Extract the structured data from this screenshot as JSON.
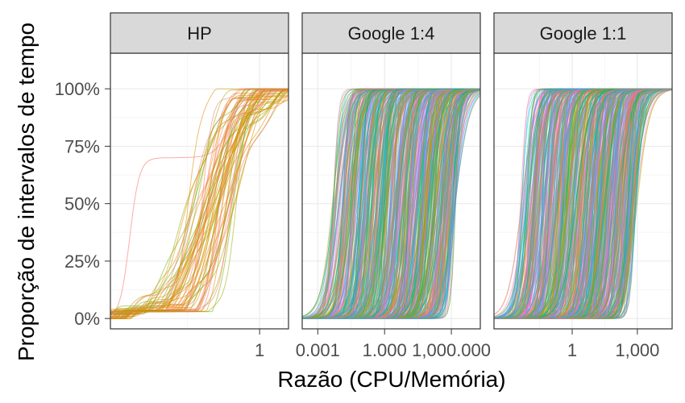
{
  "chart_data": {
    "type": "line",
    "description_type": "faceted empirical CDF",
    "xlabel": "Razão (CPU/Memória)",
    "ylabel": "Proporção de intervalos de tempo",
    "y_ticks": [
      "0%",
      "25%",
      "50%",
      "75%",
      "100%"
    ],
    "y_values": [
      0,
      0.25,
      0.5,
      0.75,
      1
    ],
    "x_scale": "log10",
    "grid": true,
    "legend": "none",
    "colors": {
      "strip_bg": "#d9d9d9",
      "panel_border": "#333333",
      "grid": "#ebebeb",
      "palette": [
        "#F8766D",
        "#E58700",
        "#C99800",
        "#A3A500",
        "#6BB100",
        "#00BA38",
        "#00BF7D",
        "#00C0AF",
        "#00BCD8",
        "#00B0F6",
        "#619CFF",
        "#B983FF",
        "#E76BF3",
        "#FD61D1",
        "#FF67A4"
      ]
    },
    "panels": [
      {
        "name": "HP",
        "x_ticks": [
          {
            "value": 1,
            "label": "1"
          }
        ],
        "xlim_log10": [
          -1.55,
          0.3
        ],
        "curves": 60,
        "median_range_log10": [
          -0.75,
          -0.25
        ],
        "series_color": "orange"
      },
      {
        "name": "Google 1:4",
        "x_ticks": [
          {
            "value": 0.001,
            "label": "0.001"
          },
          {
            "value": 1,
            "label": "1.000"
          },
          {
            "value": 1000,
            "label": "1,000.000"
          }
        ],
        "xlim_log10": [
          -3.7,
          4.3
        ],
        "curves": 650,
        "median_range_log10": [
          -2.4,
          3.2
        ],
        "series_color": "multi"
      },
      {
        "name": "Google 1:1",
        "x_ticks": [
          {
            "value": 1,
            "label": "1"
          },
          {
            "value": 1000,
            "label": "1,000"
          }
        ],
        "xlim_log10": [
          -3.6,
          4.6
        ],
        "curves": 650,
        "median_range_log10": [
          -2.4,
          3.0
        ],
        "series_color": "multi"
      }
    ]
  }
}
